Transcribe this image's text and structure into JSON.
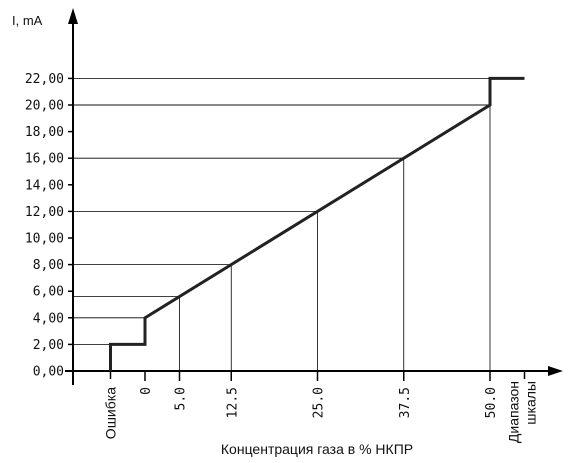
{
  "chart_data": {
    "type": "line",
    "title": "",
    "ylabel": "I, mA",
    "xlabel": "Концентрация газа в % НКПР",
    "ylim": [
      0,
      22
    ],
    "y_ticks": [
      "0,00",
      "2,00",
      "4,00",
      "6,00",
      "8,00",
      "10,00",
      "12,00",
      "14,00",
      "16,00",
      "18,00",
      "20,00",
      "22,00"
    ],
    "y_tick_values": [
      0,
      2,
      4,
      6,
      8,
      10,
      12,
      14,
      16,
      18,
      20,
      22
    ],
    "x_ticks": [
      "0",
      "5.0",
      "12.5",
      "25.0",
      "37.5",
      "50.0"
    ],
    "x_tick_values": [
      0,
      5,
      12.5,
      25,
      37.5,
      50
    ],
    "x_category_labels": [
      "Ошибка",
      "Диапазон шкалы"
    ],
    "grid": "horizontal reference lines at 22, 20, 16, 12, 8, 5.6, 4, 2 and vertical drop lines at 5, 12.5, 25, 37.5, 50",
    "series": [
      {
        "x": [
          -5,
          -5,
          0,
          0,
          50,
          50,
          55
        ],
        "y": [
          0,
          2,
          2,
          4,
          20,
          22,
          22
        ]
      }
    ],
    "reference_points": [
      {
        "x": 5,
        "y": 5.6
      },
      {
        "x": 12.5,
        "y": 8
      },
      {
        "x": 25,
        "y": 12
      },
      {
        "x": 37.5,
        "y": 16
      },
      {
        "x": 50,
        "y": 20
      }
    ],
    "colors": {
      "line": "#222222",
      "axis": "#000000",
      "grid": "#000000"
    }
  }
}
